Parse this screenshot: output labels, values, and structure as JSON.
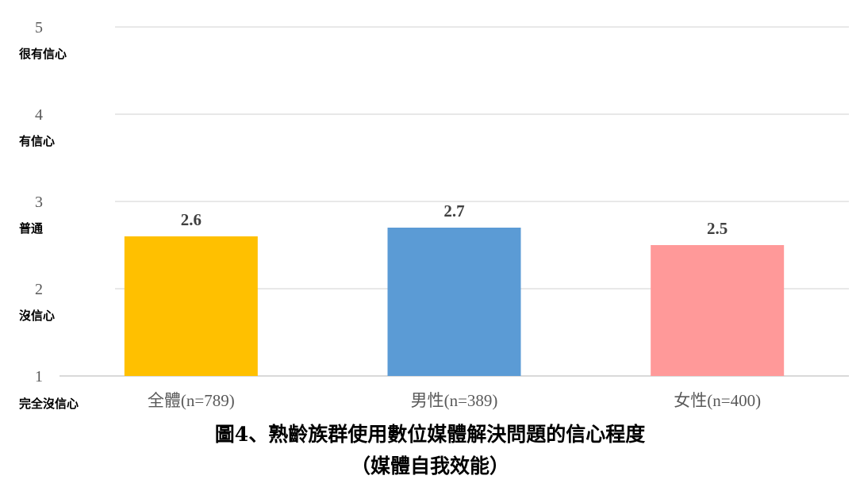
{
  "chart_data": {
    "type": "bar",
    "title": "圖4、熟齡族群使用數位媒體解決問題的信心程度",
    "subtitle": "（媒體自我效能）",
    "categories": [
      "全體(n=789)",
      "男性(n=389)",
      "女性(n=400)"
    ],
    "values": [
      2.6,
      2.7,
      2.5
    ],
    "value_labels": [
      "2.6",
      "2.7",
      "2.5"
    ],
    "bar_colors": [
      "#FFC000",
      "#5B9BD5",
      "#FF9999"
    ],
    "ylim": [
      1,
      5
    ],
    "y_ticks": [
      {
        "value": 5,
        "number": "5",
        "label": "很有信心"
      },
      {
        "value": 4,
        "number": "4",
        "label": "有信心"
      },
      {
        "value": 3,
        "number": "3",
        "label": "普通"
      },
      {
        "value": 2,
        "number": "2",
        "label": "沒信心"
      },
      {
        "value": 1,
        "number": "1",
        "label": "完全沒信心"
      }
    ],
    "grid": true,
    "legend": "none",
    "gridline_color": "#d9d9d9"
  }
}
